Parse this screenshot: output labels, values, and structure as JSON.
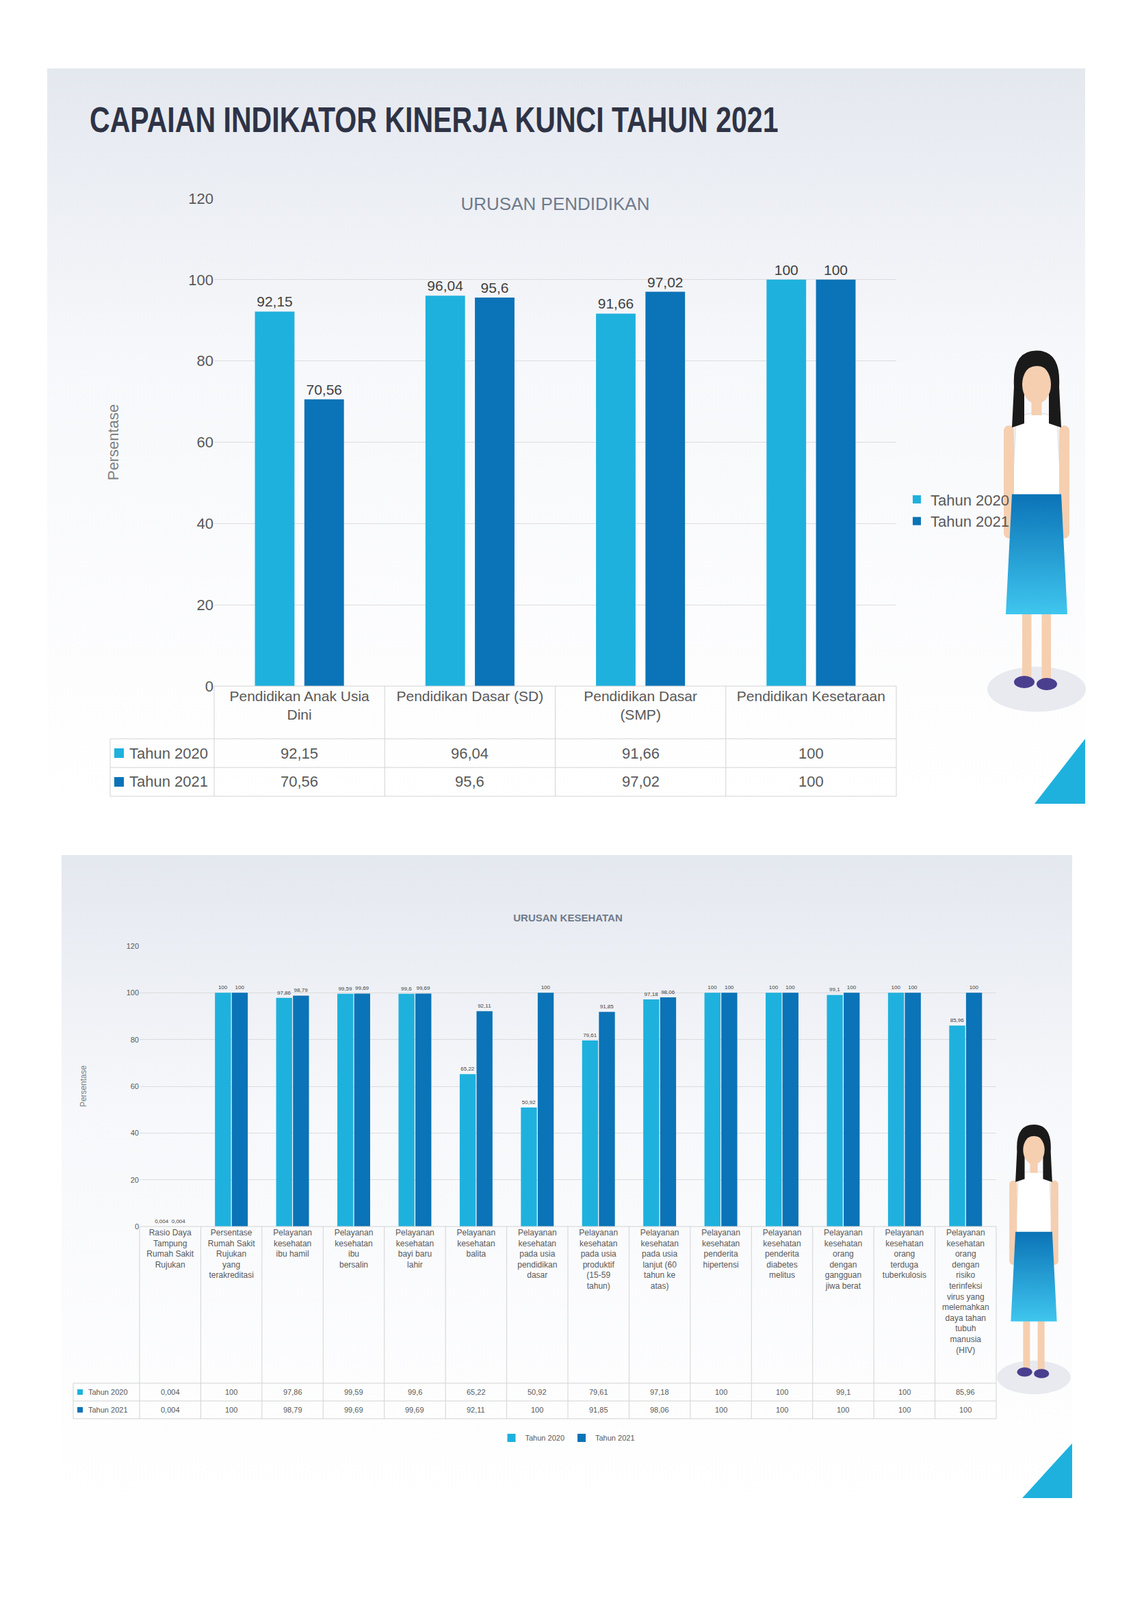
{
  "header": {
    "title": "CAPAIAN INDIKATOR KINERJA KUNCI TAHUN 2021"
  },
  "chart_data": [
    {
      "type": "bar",
      "title": "URUSAN PENDIDIKAN",
      "y_label": "Persentase",
      "categories": [
        "Pendidikan Anak Usia Dini",
        "Pendidikan Dasar (SD)",
        "Pendidikan Dasar (SMP)",
        "Pendidikan Kesetaraan"
      ],
      "series": [
        {
          "name": "Tahun 2020",
          "color": "#1fb1dd",
          "values": [
            92.15,
            96.04,
            91.66,
            100
          ],
          "value_labels": [
            "92,15",
            "96,04",
            "91,66",
            "100"
          ]
        },
        {
          "name": "Tahun 2021",
          "color": "#0b73b7",
          "values": [
            70.56,
            95.6,
            97.02,
            100
          ],
          "value_labels": [
            "70,56",
            "95,6",
            "97,02",
            "100"
          ]
        }
      ],
      "ylim": [
        0,
        120
      ],
      "yticks": [
        0,
        20,
        40,
        60,
        80,
        100,
        120
      ],
      "grid": true,
      "legend": "right",
      "data_labels": true
    },
    {
      "type": "bar",
      "title": "URUSAN KESEHATAN",
      "y_label": "Persentase",
      "categories": [
        "Rasio Daya Tampung Rumah Sakit Rujukan",
        "Persentase Rumah Sakit Rujukan yang terakreditasi",
        "Pelayanan kesehatan ibu hamil",
        "Pelayanan kesehatan ibu bersalin",
        "Pelayanan kesehatan bayi baru lahir",
        "Pelayanan kesehatan balita",
        "Pelayanan kesehatan pada usia pendidikan dasar",
        "Pelayanan kesehatan pada usia produktif (15-59 tahun)",
        "Pelayanan kesehatan pada usia lanjut (60 tahun ke atas)",
        "Pelayanan kesehatan penderita hipertensi",
        "Pelayanan kesehatan penderita diabetes melitus",
        "Pelayanan kesehatan orang dengan gangguan jiwa berat",
        "Pelayanan kesehatan orang terduga tuberkulosis",
        "Pelayanan kesehatan orang dengan risiko terinfeksi virus yang melemahkan daya tahan tubuh manusia (HIV)"
      ],
      "series": [
        {
          "name": "Tahun 2020",
          "color": "#1fb1dd",
          "values": [
            0.004,
            100,
            97.86,
            99.59,
            99.6,
            65.22,
            50.92,
            79.61,
            97.18,
            100,
            100,
            99.1,
            100,
            85.96
          ],
          "value_labels": [
            "0,004",
            "100",
            "97,86",
            "99,59",
            "99,6",
            "65,22",
            "50,92",
            "79,61",
            "97,18",
            "100",
            "100",
            "99,1",
            "100",
            "85,96"
          ]
        },
        {
          "name": "Tahun 2021",
          "color": "#0b73b7",
          "values": [
            0.004,
            100,
            98.79,
            99.69,
            99.69,
            92.11,
            100,
            91.85,
            98.06,
            100,
            100,
            100,
            100,
            100
          ],
          "value_labels": [
            "0,004",
            "100",
            "98,79",
            "99,69",
            "99,69",
            "92,11",
            "100",
            "91,85",
            "98,06",
            "100",
            "100",
            "100",
            "100",
            "100"
          ]
        }
      ],
      "ylim": [
        0,
        120
      ],
      "yticks": [
        0,
        20,
        40,
        60,
        80,
        100,
        120
      ],
      "grid": true,
      "legend": "bottom",
      "data_labels": true
    }
  ]
}
